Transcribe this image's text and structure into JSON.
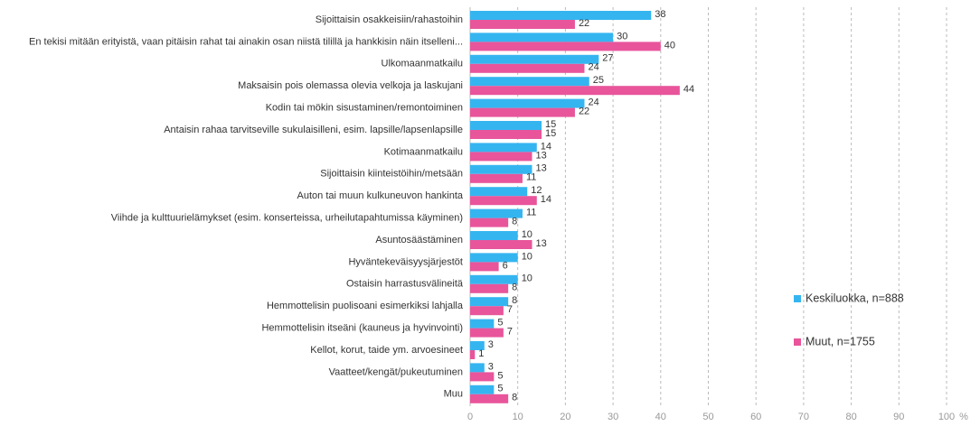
{
  "chart_data": {
    "type": "hbar",
    "categories": [
      "Sijoittaisin osakkeisiin/rahastoihin",
      "En tekisi mitään erityistä, vaan pitäisin rahat tai ainakin osan niistä tilillä ja hankkisin näin itselleni...",
      "Ulkomaanmatkailu",
      "Maksaisin pois olemassa olevia velkoja ja laskujani",
      "Kodin tai mökin sisustaminen/remontoiminen",
      "Antaisin rahaa tarvitseville sukulaisilleni, esim. lapsille/lapsenlapsille",
      "Kotimaanmatkailu",
      "Sijoittaisin kiinteistöihin/metsään",
      "Auton tai muun kulkuneuvon hankinta",
      "Viihde ja kulttuurielämykset (esim. konserteissa, urheilutapahtumissa käyminen)",
      "Asuntosäästäminen",
      "Hyväntekeväisyysjärjestöt",
      "Ostaisin harrastusvälineitä",
      "Hemmottelisin puolisoani esimerkiksi lahjalla",
      "Hemmottelisin itseäni (kauneus ja hyvinvointi)",
      "Kellot, korut, taide ym. arvoesineet",
      "Vaatteet/kengät/pukeutuminen",
      "Muu"
    ],
    "series": [
      {
        "name": "Keskiluokka, n=888",
        "color": "#35b5f0",
        "values": [
          38,
          30,
          27,
          25,
          24,
          15,
          14,
          13,
          12,
          11,
          10,
          10,
          10,
          8,
          5,
          3,
          3,
          5
        ]
      },
      {
        "name": "Muut, n=1755",
        "color": "#e8559b",
        "values": [
          22,
          40,
          24,
          44,
          22,
          15,
          13,
          11,
          14,
          8,
          13,
          6,
          8,
          7,
          7,
          1,
          5,
          8
        ]
      }
    ],
    "xlim": [
      0,
      100
    ],
    "xticks": [
      0,
      10,
      20,
      30,
      40,
      50,
      60,
      70,
      80,
      90,
      100
    ],
    "xlabel": "%",
    "grid": true,
    "legend": "right"
  }
}
